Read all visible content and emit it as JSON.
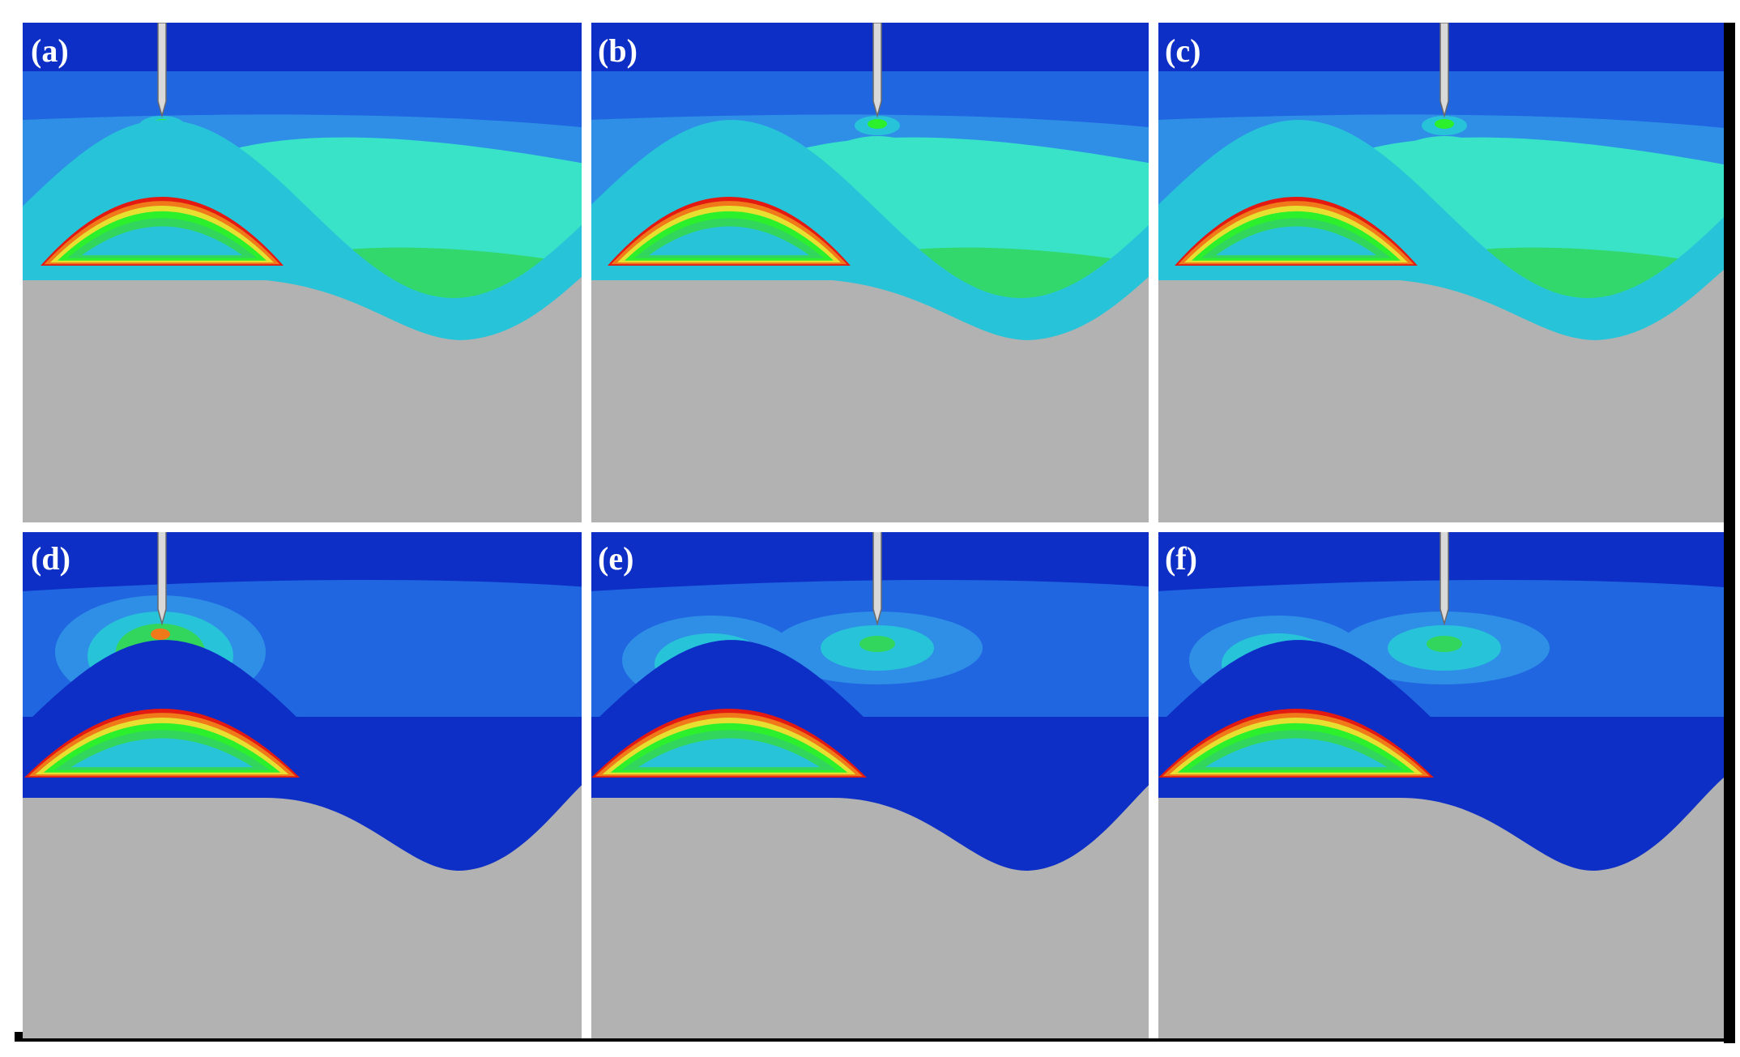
{
  "figure": {
    "panels": [
      {
        "label": "(a)",
        "indenter_position": "left",
        "stress_pattern": "cyan-green"
      },
      {
        "label": "(b)",
        "indenter_position": "right",
        "stress_pattern": "cyan-green"
      },
      {
        "label": "(c)",
        "indenter_position": "right",
        "stress_pattern": "cyan-green"
      },
      {
        "label": "(d)",
        "indenter_position": "left",
        "stress_pattern": "blue"
      },
      {
        "label": "(e)",
        "indenter_position": "right",
        "stress_pattern": "blue"
      },
      {
        "label": "(f)",
        "indenter_position": "right",
        "stress_pattern": "blue"
      }
    ],
    "colors": {
      "background": "#ffffff",
      "substrate": "#b2b2b2",
      "deep_blue": "#0d2fc6",
      "mid_blue": "#1f66e0",
      "light_blue": "#2f8fe6",
      "teal": "#27c4d9",
      "aqua": "#39e3c8",
      "green": "#33d65c",
      "bright_green": "#2bf02b",
      "yellow": "#e8e030",
      "orange": "#f07a1a",
      "red": "#e31a12",
      "indenter": "#d9d9d9",
      "frame": "#000000",
      "divider": "#ffffff"
    }
  }
}
